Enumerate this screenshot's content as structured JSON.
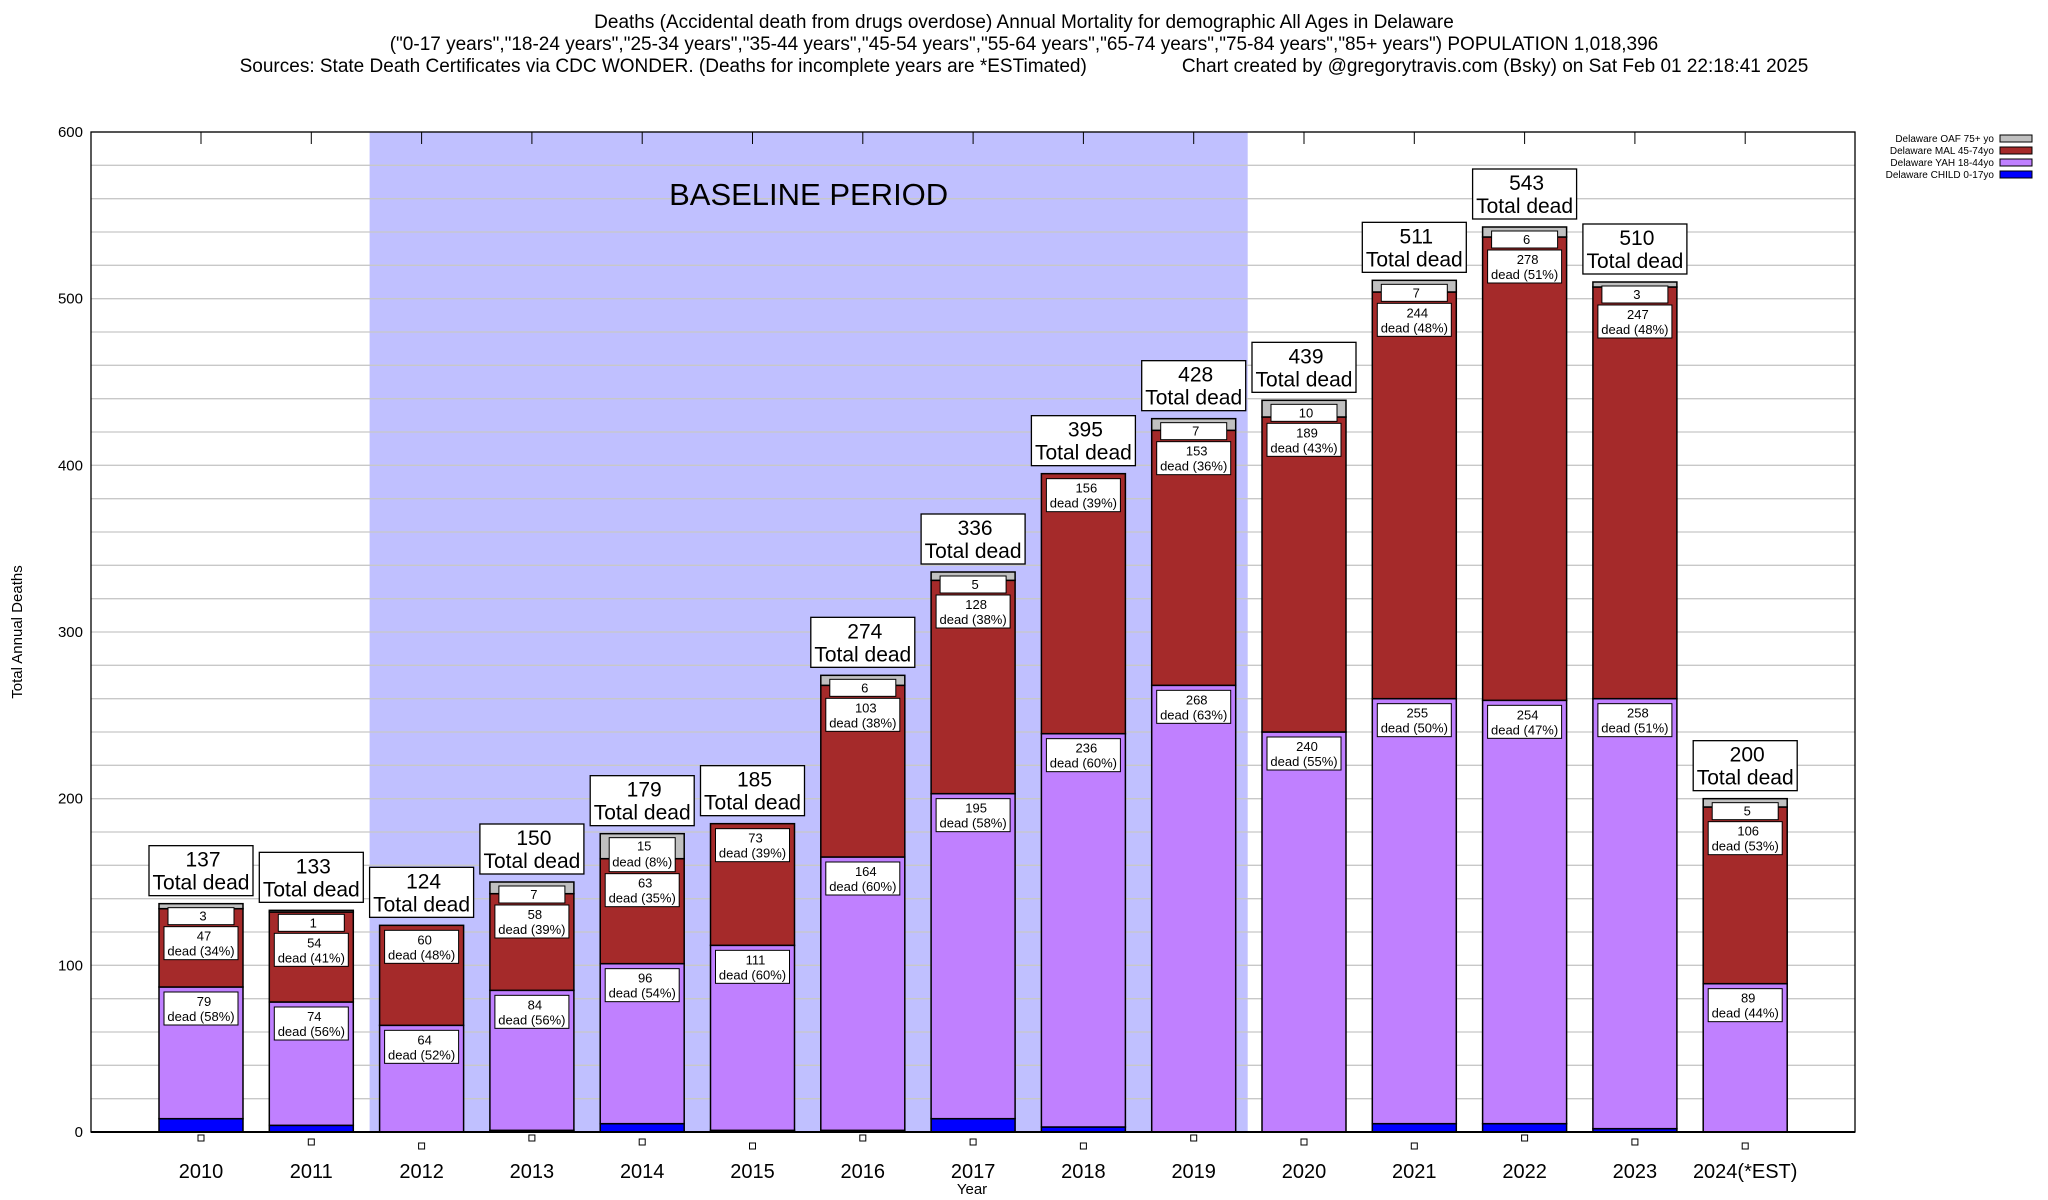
{
  "chart_data": {
    "type": "bar",
    "stacked": true,
    "title": "Deaths (Accidental death from drugs overdose) Annual Mortality for demographic All Ages in Delaware",
    "subtitle": "(\"0-17 years\",\"18-24 years\",\"25-34 years\",\"35-44 years\",\"45-54 years\",\"55-64 years\",\"65-74 years\",\"75-84 years\",\"85+ years\") POPULATION 1,018,396",
    "sources": "Sources: State Death Certificates via CDC WONDER. (Deaths for incomplete years are *ESTimated)",
    "credit": "Chart created by @gregorytravis.com (Bsky) on Sat Feb 01 22:18:41 2025",
    "xlabel": "Year",
    "ylabel": "Total Annual Deaths",
    "ylim": [
      0,
      600
    ],
    "yticks": [
      0,
      100,
      200,
      300,
      400,
      500,
      600
    ],
    "grid": true,
    "legend_position": "top-right",
    "annotation": {
      "text": "BASELINE PERIOD",
      "from": "2012",
      "to": "2019",
      "color": "#c0c0ff"
    },
    "categories": [
      "2010",
      "2011",
      "2012",
      "2013",
      "2014",
      "2015",
      "2016",
      "2017",
      "2018",
      "2019",
      "2020",
      "2021",
      "2022",
      "2023",
      "2024(*EST)"
    ],
    "totals": [
      137,
      133,
      124,
      150,
      179,
      185,
      274,
      336,
      395,
      428,
      439,
      511,
      543,
      510,
      200
    ],
    "total_suffix": "Total dead",
    "dead_word": "dead",
    "series": [
      {
        "name": "Delaware CHILD 0-17yo",
        "color": "#0000ff",
        "values": [
          8,
          4,
          0,
          1,
          5,
          1,
          1,
          8,
          3,
          0,
          0,
          5,
          5,
          2,
          0
        ]
      },
      {
        "name": "Delaware YAH 18-44yo",
        "color": "#c080ff",
        "values": [
          79,
          74,
          64,
          84,
          96,
          111,
          164,
          195,
          236,
          268,
          240,
          255,
          254,
          258,
          89
        ],
        "percent": [
          58,
          56,
          52,
          56,
          54,
          60,
          60,
          58,
          60,
          63,
          55,
          50,
          47,
          51,
          44
        ]
      },
      {
        "name": "Delaware MAL 45-74yo",
        "color": "#a52a2a",
        "values": [
          47,
          54,
          60,
          58,
          63,
          73,
          103,
          128,
          156,
          153,
          189,
          244,
          278,
          247,
          106
        ],
        "percent": [
          34,
          41,
          48,
          39,
          35,
          39,
          38,
          38,
          39,
          36,
          43,
          48,
          51,
          48,
          53
        ]
      },
      {
        "name": "Delaware OAF 75+ yo",
        "color": "#c0c0c0",
        "values": [
          3,
          1,
          0,
          7,
          15,
          0,
          6,
          5,
          0,
          7,
          10,
          7,
          6,
          3,
          5
        ],
        "percent": [
          null,
          null,
          null,
          null,
          8,
          null,
          null,
          null,
          null,
          null,
          null,
          null,
          null,
          null,
          null
        ]
      }
    ]
  }
}
